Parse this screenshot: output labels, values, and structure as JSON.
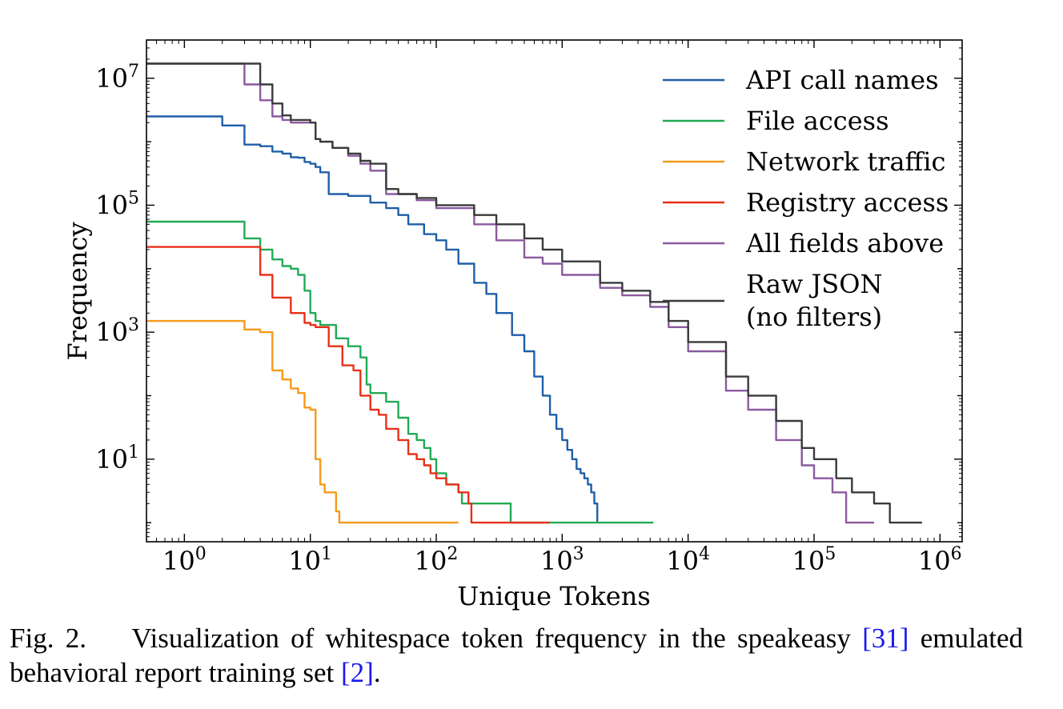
{
  "chart_data": {
    "type": "line",
    "xlabel": "Unique Tokens",
    "ylabel": "Frequency",
    "x_scale": "log",
    "y_scale": "log",
    "xlim": [
      0.5,
      1500000
    ],
    "ylim": [
      0.5,
      40000000
    ],
    "x_ticks": [
      {
        "value": 1,
        "base": "10",
        "exp": "0"
      },
      {
        "value": 10,
        "base": "10",
        "exp": "1"
      },
      {
        "value": 100,
        "base": "10",
        "exp": "2"
      },
      {
        "value": 1000,
        "base": "10",
        "exp": "3"
      },
      {
        "value": 10000,
        "base": "10",
        "exp": "4"
      },
      {
        "value": 100000,
        "base": "10",
        "exp": "5"
      },
      {
        "value": 1000000,
        "base": "10",
        "exp": "6"
      }
    ],
    "y_ticks": [
      {
        "value": 10,
        "base": "10",
        "exp": "1"
      },
      {
        "value": 1000,
        "base": "10",
        "exp": "3"
      },
      {
        "value": 100000,
        "base": "10",
        "exp": "5"
      },
      {
        "value": 10000000,
        "base": "10",
        "exp": "7"
      }
    ],
    "grid": false,
    "legend_position": "top-right",
    "series": [
      {
        "name": "API call names",
        "color": "#1f5fa8",
        "points": [
          [
            0.5,
            2500000
          ],
          [
            1,
            2500000
          ],
          [
            2,
            1800000
          ],
          [
            3,
            900000
          ],
          [
            4,
            850000
          ],
          [
            5,
            700000
          ],
          [
            6,
            650000
          ],
          [
            7,
            570000
          ],
          [
            8,
            560000
          ],
          [
            9,
            480000
          ],
          [
            10,
            450000
          ],
          [
            11,
            400000
          ],
          [
            12,
            330000
          ],
          [
            14,
            150000
          ],
          [
            20,
            140000
          ],
          [
            30,
            110000
          ],
          [
            40,
            90000
          ],
          [
            50,
            70000
          ],
          [
            60,
            50000
          ],
          [
            80,
            35000
          ],
          [
            100,
            28000
          ],
          [
            120,
            20000
          ],
          [
            150,
            12000
          ],
          [
            200,
            6000
          ],
          [
            250,
            4000
          ],
          [
            300,
            2000
          ],
          [
            400,
            900
          ],
          [
            500,
            500
          ],
          [
            600,
            200
          ],
          [
            700,
            100
          ],
          [
            800,
            50
          ],
          [
            900,
            30
          ],
          [
            1000,
            20
          ],
          [
            1100,
            14
          ],
          [
            1200,
            10
          ],
          [
            1300,
            7
          ],
          [
            1400,
            6
          ],
          [
            1500,
            5
          ],
          [
            1600,
            4
          ],
          [
            1700,
            3
          ],
          [
            1800,
            2
          ],
          [
            1900,
            1
          ]
        ]
      },
      {
        "name": "File access",
        "color": "#22aa55",
        "points": [
          [
            0.5,
            55000
          ],
          [
            1,
            55000
          ],
          [
            2,
            55000
          ],
          [
            3,
            30000
          ],
          [
            4,
            20000
          ],
          [
            5,
            14000
          ],
          [
            6,
            11000
          ],
          [
            7,
            10000
          ],
          [
            8,
            8000
          ],
          [
            9,
            4500
          ],
          [
            10,
            2000
          ],
          [
            11,
            1500
          ],
          [
            12,
            1300
          ],
          [
            15,
            1300
          ],
          [
            16,
            800
          ],
          [
            20,
            600
          ],
          [
            25,
            400
          ],
          [
            28,
            150
          ],
          [
            30,
            110
          ],
          [
            40,
            80
          ],
          [
            50,
            45
          ],
          [
            60,
            25
          ],
          [
            70,
            20
          ],
          [
            80,
            15
          ],
          [
            90,
            10
          ],
          [
            100,
            6
          ],
          [
            120,
            4
          ],
          [
            150,
            3
          ],
          [
            160,
            2
          ],
          [
            190,
            2
          ],
          [
            200,
            2
          ],
          [
            300,
            2
          ],
          [
            380,
            2
          ],
          [
            390,
            1
          ],
          [
            800,
            1
          ],
          [
            2000,
            1
          ],
          [
            5300,
            1
          ]
        ]
      },
      {
        "name": "Network traffic",
        "color": "#f59a1a",
        "points": [
          [
            0.5,
            1500
          ],
          [
            1,
            1500
          ],
          [
            2,
            1500
          ],
          [
            3,
            1100
          ],
          [
            4,
            1000
          ],
          [
            5,
            250
          ],
          [
            6,
            180
          ],
          [
            7,
            130
          ],
          [
            8,
            110
          ],
          [
            9,
            65
          ],
          [
            10,
            60
          ],
          [
            11,
            10
          ],
          [
            12,
            4
          ],
          [
            13,
            3
          ],
          [
            15,
            3
          ],
          [
            16,
            1.5
          ],
          [
            17,
            1
          ],
          [
            150,
            1
          ]
        ]
      },
      {
        "name": "Registry access",
        "color": "#e8301a",
        "points": [
          [
            0.5,
            22000
          ],
          [
            1,
            22000
          ],
          [
            2,
            22000
          ],
          [
            3,
            22000
          ],
          [
            4,
            8000
          ],
          [
            5,
            3500
          ],
          [
            6,
            3500
          ],
          [
            7,
            2000
          ],
          [
            8,
            2000
          ],
          [
            9,
            1400
          ],
          [
            10,
            1300
          ],
          [
            11,
            1200
          ],
          [
            13,
            1200
          ],
          [
            14,
            600
          ],
          [
            17,
            600
          ],
          [
            18,
            300
          ],
          [
            22,
            250
          ],
          [
            25,
            100
          ],
          [
            30,
            60
          ],
          [
            35,
            50
          ],
          [
            40,
            30
          ],
          [
            50,
            20
          ],
          [
            60,
            12
          ],
          [
            70,
            10
          ],
          [
            80,
            8
          ],
          [
            90,
            6
          ],
          [
            100,
            5
          ],
          [
            120,
            4
          ],
          [
            150,
            3
          ],
          [
            180,
            2
          ],
          [
            190,
            1
          ],
          [
            800,
            1
          ]
        ]
      },
      {
        "name": "All fields above",
        "color": "#8a5a9e",
        "points": [
          [
            0.5,
            17000000
          ],
          [
            1,
            17000000
          ],
          [
            2,
            17000000
          ],
          [
            3,
            8000000
          ],
          [
            4,
            4500000
          ],
          [
            5,
            2500000
          ],
          [
            6,
            2200000
          ],
          [
            7,
            2000000
          ],
          [
            8,
            2000000
          ],
          [
            10,
            2000000
          ],
          [
            11,
            1100000
          ],
          [
            12,
            1000000
          ],
          [
            15,
            800000
          ],
          [
            20,
            600000
          ],
          [
            25,
            450000
          ],
          [
            30,
            350000
          ],
          [
            40,
            150000
          ],
          [
            50,
            150000
          ],
          [
            70,
            120000
          ],
          [
            100,
            90000
          ],
          [
            200,
            50000
          ],
          [
            300,
            28000
          ],
          [
            500,
            15000
          ],
          [
            700,
            12000
          ],
          [
            1000,
            8000
          ],
          [
            2000,
            5000
          ],
          [
            3000,
            3800
          ],
          [
            4000,
            3800
          ],
          [
            5000,
            2500
          ],
          [
            7000,
            1200
          ],
          [
            10000,
            500
          ],
          [
            20000,
            120
          ],
          [
            30000,
            60
          ],
          [
            50000,
            20
          ],
          [
            80000,
            8
          ],
          [
            100000,
            5
          ],
          [
            140000,
            3
          ],
          [
            180000,
            1
          ],
          [
            300000,
            1
          ]
        ]
      },
      {
        "name": "Raw JSON\n(no filters)",
        "color": "#3a3a3a",
        "points": [
          [
            0.5,
            17000000
          ],
          [
            1,
            17000000
          ],
          [
            2,
            17000000
          ],
          [
            3,
            17000000
          ],
          [
            4,
            8000000
          ],
          [
            5,
            4000000
          ],
          [
            6,
            2600000
          ],
          [
            7,
            2200000
          ],
          [
            10,
            2000000
          ],
          [
            11,
            1100000
          ],
          [
            12,
            1000000
          ],
          [
            15,
            800000
          ],
          [
            20,
            650000
          ],
          [
            25,
            500000
          ],
          [
            30,
            450000
          ],
          [
            40,
            180000
          ],
          [
            50,
            150000
          ],
          [
            70,
            130000
          ],
          [
            100,
            100000
          ],
          [
            200,
            70000
          ],
          [
            300,
            50000
          ],
          [
            500,
            30000
          ],
          [
            700,
            20000
          ],
          [
            1000,
            13000
          ],
          [
            2000,
            6000
          ],
          [
            3000,
            4500
          ],
          [
            4000,
            4500
          ],
          [
            5000,
            3000
          ],
          [
            7000,
            1500
          ],
          [
            10000,
            700
          ],
          [
            20000,
            200
          ],
          [
            30000,
            100
          ],
          [
            50000,
            40
          ],
          [
            80000,
            15
          ],
          [
            100000,
            10
          ],
          [
            150000,
            5
          ],
          [
            200000,
            3
          ],
          [
            300000,
            2
          ],
          [
            400000,
            1
          ],
          [
            720000,
            1
          ]
        ]
      }
    ]
  },
  "caption": {
    "prefix": "Fig. 2.",
    "text_before_ref1": "Visualization of whitespace token frequency in the speakeasy",
    "ref1": "[31]",
    "text_before_ref2": "emulated behavioral report training set",
    "ref2": "[2]",
    "text_end": "."
  }
}
